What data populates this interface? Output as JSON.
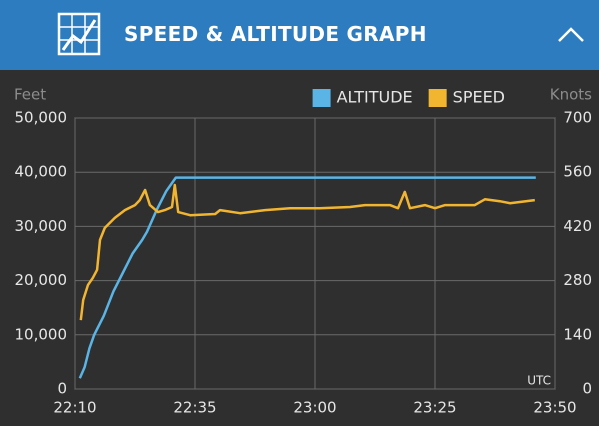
{
  "header": {
    "title": "SPEED & ALTITUDE GRAPH"
  },
  "chart_data": {
    "type": "line",
    "y_label": "Feet",
    "y2_label": "Knots",
    "x_label": "UTC",
    "xlim": [
      1330,
      1430
    ],
    "xticks": [
      {
        "value": 1330,
        "label": "22:10"
      },
      {
        "value": 1355,
        "label": "22:35"
      },
      {
        "value": 1380,
        "label": "23:00"
      },
      {
        "value": 1405,
        "label": "23:25"
      },
      {
        "value": 1430,
        "label": "23:50"
      }
    ],
    "ylim": [
      0,
      50000
    ],
    "yticks": [
      0,
      {
        "value": 10000,
        "label": "10,000"
      },
      {
        "value": 20000,
        "label": "20,000"
      },
      {
        "value": 30000,
        "label": "30,000"
      },
      {
        "value": 40000,
        "label": "40,000"
      },
      {
        "value": 50000,
        "label": "50,000"
      }
    ],
    "y2lim": [
      0,
      700
    ],
    "y2ticks": [
      0,
      140,
      280,
      420,
      560,
      700
    ],
    "grid": true,
    "legend": "top-right",
    "series": [
      {
        "name": "ALTITUDE",
        "color": "#5ab4e5",
        "x": [
          1331,
          1332,
          1333,
          1334,
          1336,
          1338,
          1340,
          1342,
          1344,
          1345,
          1347,
          1349,
          1351,
          1426
        ],
        "values": [
          2000,
          4000,
          7500,
          10000,
          13500,
          18000,
          21500,
          25000,
          27500,
          29000,
          33000,
          36500,
          39000,
          39000
        ]
      },
      {
        "name": "SPEED",
        "color": "#f2b530",
        "axis": "y2",
        "x": [
          1331.2,
          1331.7,
          1332.7,
          1333.7,
          1334.6,
          1335.2,
          1336.2,
          1338.3,
          1340.4,
          1342.5,
          1343.5,
          1344.6,
          1345.6,
          1347.3,
          1348.7,
          1350.2,
          1350.8,
          1351.5,
          1354,
          1359.2,
          1360.2,
          1364.4,
          1369.6,
          1374.8,
          1381,
          1387.3,
          1390.4,
          1395.6,
          1397.3,
          1398.7,
          1399.8,
          1402.9,
          1405,
          1407.1,
          1413.3,
          1415.4,
          1418.5,
          1420.6,
          1425.8
        ],
        "values": [
          178,
          230,
          269,
          287,
          308,
          385,
          416,
          442,
          462,
          475,
          488,
          514,
          475,
          457,
          462,
          470,
          527,
          457,
          449,
          452,
          462,
          454,
          462,
          467,
          467,
          470,
          475,
          475,
          467,
          509,
          467,
          475,
          467,
          475,
          475,
          490,
          485,
          480,
          488
        ]
      }
    ]
  }
}
